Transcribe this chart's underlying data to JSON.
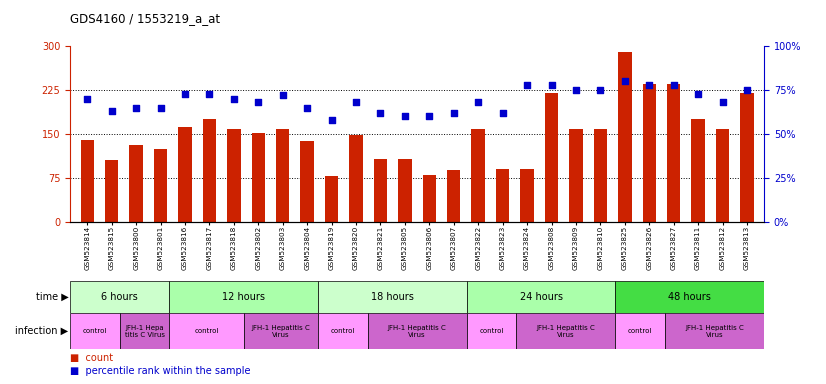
{
  "title": "GDS4160 / 1553219_a_at",
  "samples": [
    "GSM523814",
    "GSM523815",
    "GSM523800",
    "GSM523801",
    "GSM523816",
    "GSM523817",
    "GSM523818",
    "GSM523802",
    "GSM523803",
    "GSM523804",
    "GSM523819",
    "GSM523820",
    "GSM523821",
    "GSM523805",
    "GSM523806",
    "GSM523807",
    "GSM523822",
    "GSM523823",
    "GSM523824",
    "GSM523808",
    "GSM523809",
    "GSM523810",
    "GSM523825",
    "GSM523826",
    "GSM523827",
    "GSM523811",
    "GSM523812",
    "GSM523813"
  ],
  "counts": [
    140,
    105,
    132,
    125,
    162,
    175,
    158,
    152,
    158,
    138,
    78,
    148,
    108,
    108,
    80,
    88,
    158,
    90,
    90,
    220,
    158,
    158,
    290,
    235,
    235,
    175,
    158,
    220
  ],
  "percentile_ranks": [
    70,
    63,
    65,
    65,
    73,
    73,
    70,
    68,
    72,
    65,
    58,
    68,
    62,
    60,
    60,
    62,
    68,
    62,
    78,
    78,
    75,
    75,
    80,
    78,
    78,
    73,
    68,
    75
  ],
  "ylim_left": [
    0,
    300
  ],
  "ylim_right": [
    0,
    100
  ],
  "yticks_left": [
    0,
    75,
    150,
    225,
    300
  ],
  "yticks_right": [
    0,
    25,
    50,
    75,
    100
  ],
  "bar_color": "#cc2200",
  "scatter_color": "#0000cc",
  "background_color": "#ffffff",
  "time_groups": [
    {
      "label": "6 hours",
      "start": 0,
      "end": 4,
      "color": "#ccffcc"
    },
    {
      "label": "12 hours",
      "start": 4,
      "end": 10,
      "color": "#aaffaa"
    },
    {
      "label": "18 hours",
      "start": 10,
      "end": 16,
      "color": "#ccffcc"
    },
    {
      "label": "24 hours",
      "start": 16,
      "end": 22,
      "color": "#aaffaa"
    },
    {
      "label": "48 hours",
      "start": 22,
      "end": 28,
      "color": "#44dd44"
    }
  ],
  "infection_groups": [
    {
      "label": "control",
      "start": 0,
      "end": 2,
      "color": "#ff99ff"
    },
    {
      "label": "JFH-1 Hepa\ntitis C Virus",
      "start": 2,
      "end": 4,
      "color": "#cc66cc"
    },
    {
      "label": "control",
      "start": 4,
      "end": 7,
      "color": "#ff99ff"
    },
    {
      "label": "JFH-1 Hepatitis C\nVirus",
      "start": 7,
      "end": 10,
      "color": "#cc66cc"
    },
    {
      "label": "control",
      "start": 10,
      "end": 12,
      "color": "#ff99ff"
    },
    {
      "label": "JFH-1 Hepatitis C\nVirus",
      "start": 12,
      "end": 16,
      "color": "#cc66cc"
    },
    {
      "label": "control",
      "start": 16,
      "end": 18,
      "color": "#ff99ff"
    },
    {
      "label": "JFH-1 Hepatitis C\nVirus",
      "start": 18,
      "end": 22,
      "color": "#cc66cc"
    },
    {
      "label": "control",
      "start": 22,
      "end": 24,
      "color": "#ff99ff"
    },
    {
      "label": "JFH-1 Hepatitis C\nVirus",
      "start": 24,
      "end": 28,
      "color": "#cc66cc"
    }
  ],
  "row_label_time": "time",
  "row_label_infection": "infection",
  "legend_count_label": "count",
  "legend_percentile_label": "percentile rank within the sample"
}
